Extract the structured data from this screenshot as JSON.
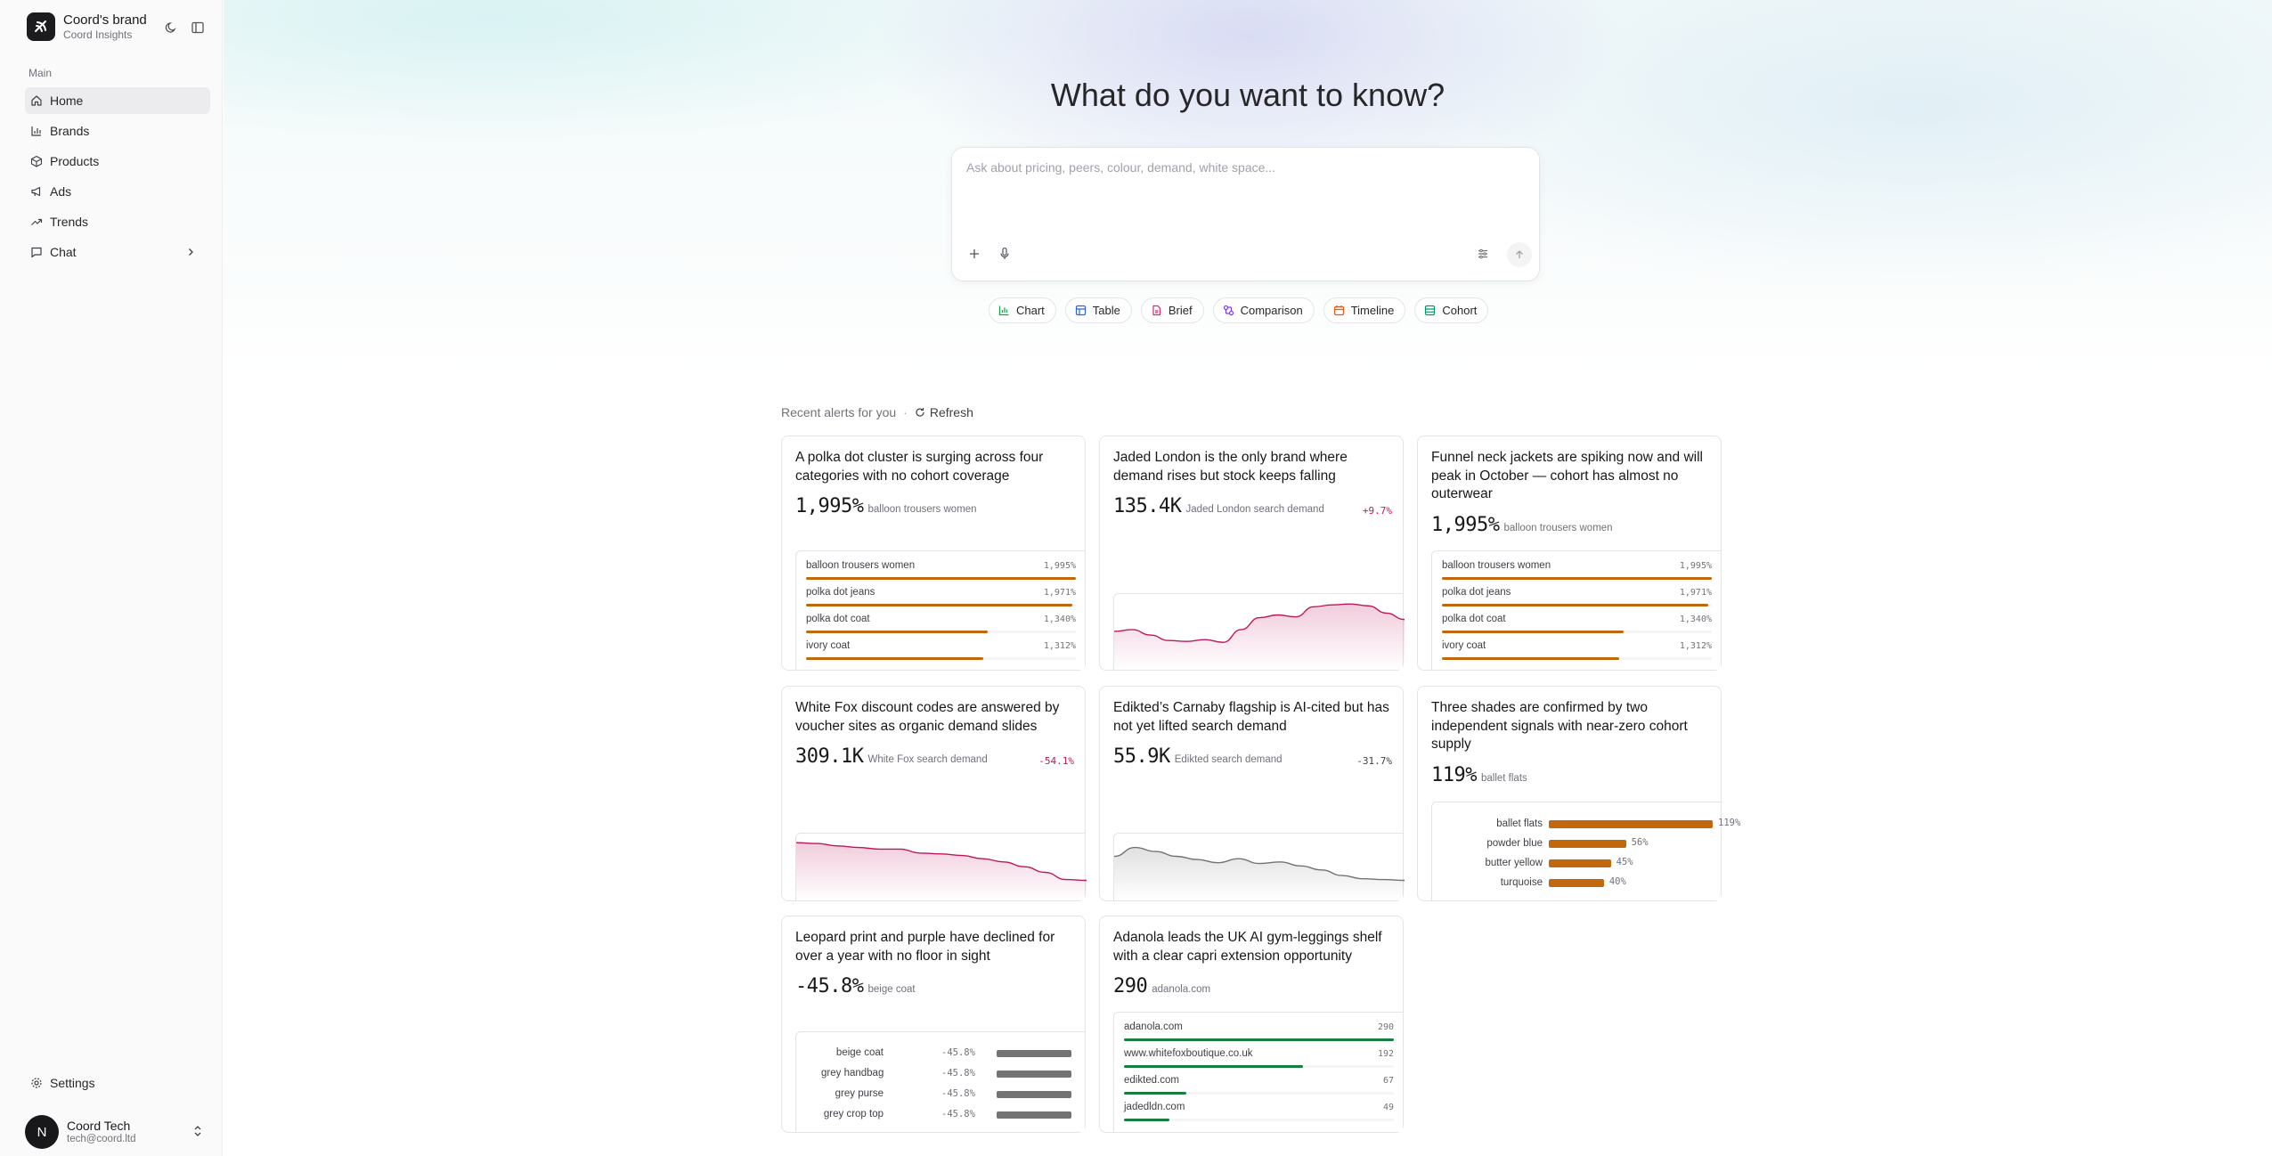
{
  "sidebar": {
    "brand_name": "Coord's brand",
    "brand_sub": "Coord Insights",
    "section_label": "Main",
    "items": [
      {
        "label": "Home",
        "icon": "home-icon",
        "active": true
      },
      {
        "label": "Brands",
        "icon": "bar-chart-icon"
      },
      {
        "label": "Products",
        "icon": "package-icon"
      },
      {
        "label": "Ads",
        "icon": "megaphone-icon"
      },
      {
        "label": "Trends",
        "icon": "trending-up-icon"
      },
      {
        "label": "Chat",
        "icon": "chat-icon",
        "has_children": true
      }
    ],
    "settings_label": "Settings",
    "user": {
      "initial": "N",
      "name": "Coord Tech",
      "email": "tech@coord.ltd"
    }
  },
  "main": {
    "heading": "What do you want to know?",
    "ask_placeholder": "Ask about pricing, peers, colour, demand, white space...",
    "chips": [
      {
        "label": "Chart",
        "icon": "chart-icon",
        "color": "#16a34a"
      },
      {
        "label": "Table",
        "icon": "table-icon",
        "color": "#2563eb"
      },
      {
        "label": "Brief",
        "icon": "document-icon",
        "color": "#db2777"
      },
      {
        "label": "Comparison",
        "icon": "compare-icon",
        "color": "#7c3aed"
      },
      {
        "label": "Timeline",
        "icon": "calendar-icon",
        "color": "#ea580c"
      },
      {
        "label": "Cohort",
        "icon": "cohort-table-icon",
        "color": "#059669"
      }
    ],
    "alerts_title": "Recent alerts for you",
    "refresh_label": "Refresh"
  },
  "alerts": [
    {
      "title": "A polka dot cluster is surging across four categories with no cohort coverage",
      "value": "1,995%",
      "label": "balloon trousers women",
      "kind": "bars",
      "color": "#c2680c",
      "rows": [
        {
          "label": "balloon trousers women",
          "value": "1,995%",
          "pct": 1995
        },
        {
          "label": "polka dot jeans",
          "value": "1,971%",
          "pct": 1971
        },
        {
          "label": "polka dot coat",
          "value": "1,340%",
          "pct": 1340
        },
        {
          "label": "ivory coat",
          "value": "1,312%",
          "pct": 1312
        }
      ]
    },
    {
      "title": "Jaded London is the only brand where demand rises but stock keeps falling",
      "value": "135.4K",
      "label": "Jaded London search demand",
      "delta": "+9.7%",
      "kind": "spark",
      "color": "#be185d",
      "series": [
        42,
        44,
        38,
        32,
        31,
        33,
        30,
        44,
        57,
        60,
        58,
        69,
        71,
        72,
        70,
        62,
        55
      ]
    },
    {
      "title": "Funnel neck jackets are spiking now and will peak in October — cohort has almost no outerwear",
      "value": "1,995%",
      "label": "balloon trousers women",
      "kind": "bars",
      "color": "#c2680c",
      "rows": [
        {
          "label": "balloon trousers women",
          "value": "1,995%",
          "pct": 1995
        },
        {
          "label": "polka dot jeans",
          "value": "1,971%",
          "pct": 1971
        },
        {
          "label": "polka dot coat",
          "value": "1,340%",
          "pct": 1340
        },
        {
          "label": "ivory coat",
          "value": "1,312%",
          "pct": 1312
        }
      ]
    },
    {
      "title": "White Fox discount codes are answered by voucher sites as organic demand slides",
      "value": "309.1K",
      "label": "White Fox search demand",
      "delta": "-54.1%",
      "kind": "spark",
      "color": "#be185d",
      "series": [
        72,
        71,
        68,
        66,
        64,
        64,
        59,
        58,
        56,
        52,
        48,
        42,
        35,
        26,
        25
      ]
    },
    {
      "title": "Edikted’s Carnaby flagship is AI-cited but has not yet lifted search demand",
      "value": "55.9K",
      "label": "Edikted search demand",
      "delta": "-31.7%",
      "kind": "spark",
      "color": "#737373",
      "series": [
        55,
        66,
        61,
        55,
        51,
        47,
        52,
        46,
        48,
        43,
        38,
        31,
        27,
        26,
        25
      ]
    },
    {
      "title": "Three shades are confirmed by two independent signals with near-zero cohort supply",
      "value": "119%",
      "label": "ballet flats",
      "kind": "hbars",
      "color": "#c2680c",
      "rows": [
        {
          "label": "ballet flats",
          "value": "119%",
          "pct": 119
        },
        {
          "label": "powder blue",
          "value": "56%",
          "pct": 56
        },
        {
          "label": "butter yellow",
          "value": "45%",
          "pct": 45
        },
        {
          "label": "turquoise",
          "value": "40%",
          "pct": 40
        }
      ]
    },
    {
      "title": "Leopard print and purple have declined for over a year with no floor in sight",
      "value": "-45.8%",
      "label": "beige coat",
      "kind": "neg",
      "color": "#737373",
      "rows": [
        {
          "label": "beige coat",
          "value": "-45.8%"
        },
        {
          "label": "grey handbag",
          "value": "-45.8%"
        },
        {
          "label": "grey purse",
          "value": "-45.8%"
        },
        {
          "label": "grey crop top",
          "value": "-45.8%"
        }
      ]
    },
    {
      "title": "Adanola leads the UK AI gym-leggings shelf with a clear capri extension opportunity",
      "value": "290",
      "label": "adanola.com",
      "kind": "bars",
      "color": "#15803d",
      "rows": [
        {
          "label": "adanola.com",
          "value": "290",
          "pct": 290
        },
        {
          "label": "www.whitefoxboutique.co.uk",
          "value": "192",
          "pct": 192
        },
        {
          "label": "edikted.com",
          "value": "67",
          "pct": 67
        },
        {
          "label": "jadedldn.com",
          "value": "49",
          "pct": 49
        }
      ]
    }
  ]
}
